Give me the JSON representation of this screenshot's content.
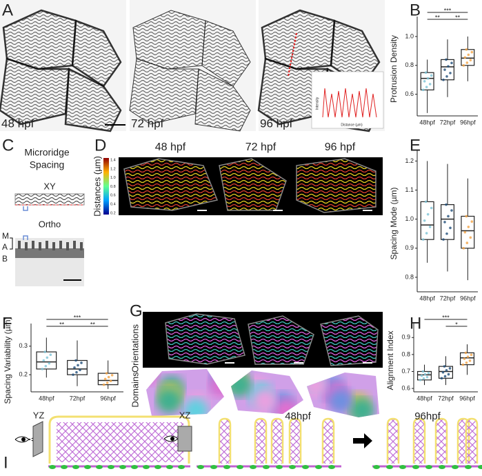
{
  "panels": {
    "A": {
      "letter": "A",
      "timepoints": [
        "48 hpf",
        "72 hpf",
        "96 hpf"
      ],
      "inset_x_label": "Distance (µm)",
      "inset_y_label": "Intensity"
    },
    "C": {
      "letter": "C",
      "title": [
        "Microridge",
        "Spacing"
      ],
      "views": [
        "XY",
        "Ortho"
      ],
      "layers": [
        "M",
        "A",
        "B"
      ]
    },
    "D": {
      "letter": "D",
      "timepoints": [
        "48 hpf",
        "72 hpf",
        "96 hpf"
      ],
      "colorbar_label": "Distances (µm)",
      "colorbar_ticks": [
        "1.4",
        "1.2",
        "1.0",
        "0.8",
        "0.6",
        "0.4",
        "0.2"
      ]
    },
    "G": {
      "letter": "G",
      "rows": [
        "Orientations",
        "Domains"
      ]
    },
    "I": {
      "letter": "I",
      "views": [
        "YZ",
        "XZ"
      ],
      "timepoints": [
        "48hpf",
        "96hpf"
      ]
    }
  },
  "chart_data": [
    {
      "type": "box",
      "letter": "B",
      "y_label": "Protrusion Density",
      "categories": [
        "48hpf",
        "72hpf",
        "96hpf"
      ],
      "colors": [
        "#7cc3d6",
        "#1f4e79",
        "#f2a244"
      ],
      "ylim": [
        0.45,
        1.1
      ],
      "yticks": [
        0.6,
        0.8,
        {
          "value": 1,
          "label": "1.0"
        }
      ],
      "boxes": [
        {
          "min": 0.47,
          "q1": 0.63,
          "median": 0.71,
          "q3": 0.75,
          "max": 0.84
        },
        {
          "min": 0.58,
          "q1": 0.7,
          "median": 0.79,
          "q3": 0.84,
          "max": 0.98
        },
        {
          "min": 0.69,
          "q1": 0.8,
          "median": 0.85,
          "q3": 0.91,
          "max": 1.0
        }
      ],
      "significance": [
        {
          "pair": [
            "48hpf",
            "72hpf"
          ],
          "label": "**"
        },
        {
          "pair": [
            "72hpf",
            "96hpf"
          ],
          "label": "**"
        },
        {
          "pair": [
            "48hpf",
            "96hpf"
          ],
          "label": "***"
        }
      ]
    },
    {
      "type": "box",
      "letter": "E",
      "y_label": "Spacing Mode (µm)",
      "categories": [
        "48hpf",
        "72hpf",
        "96hpf"
      ],
      "colors": [
        "#7cc3d6",
        "#1f4e79",
        "#f2a244"
      ],
      "ylim": [
        0.75,
        1.22
      ],
      "yticks": [
        0.8,
        0.9,
        {
          "value": 1,
          "label": "1.0"
        },
        1.1,
        1.2
      ],
      "boxes": [
        {
          "min": 0.85,
          "q1": 0.93,
          "median": 0.98,
          "q3": 1.06,
          "max": 1.2
        },
        {
          "min": 0.82,
          "q1": 0.93,
          "median": 1.0,
          "q3": 1.05,
          "max": 1.19
        },
        {
          "min": 0.79,
          "q1": 0.9,
          "median": 0.96,
          "q3": 1.01,
          "max": 1.14
        }
      ],
      "significance": []
    },
    {
      "type": "box",
      "letter": "F",
      "y_label": "Spacing Variability (µm)",
      "categories": [
        "48hpf",
        "72hpf",
        "96hpf"
      ],
      "colors": [
        "#7cc3d6",
        "#1f4e79",
        "#f2a244"
      ],
      "ylim": [
        0.14,
        0.36
      ],
      "yticks": [
        0.2,
        0.3
      ],
      "boxes": [
        {
          "min": 0.19,
          "q1": 0.22,
          "median": 0.245,
          "q3": 0.28,
          "max": 0.33
        },
        {
          "min": 0.16,
          "q1": 0.2,
          "median": 0.22,
          "q3": 0.25,
          "max": 0.32
        },
        {
          "min": 0.15,
          "q1": 0.165,
          "median": 0.18,
          "q3": 0.205,
          "max": 0.25
        }
      ],
      "significance": [
        {
          "pair": [
            "48hpf",
            "72hpf"
          ],
          "label": "**"
        },
        {
          "pair": [
            "72hpf",
            "96hpf"
          ],
          "label": "**"
        },
        {
          "pair": [
            "48hpf",
            "96hpf"
          ],
          "label": "***"
        }
      ]
    },
    {
      "type": "box",
      "letter": "H",
      "y_label": "Alignment Index",
      "categories": [
        "48hpf",
        "72hpf",
        "96hpf"
      ],
      "colors": [
        "#7cc3d6",
        "#1f4e79",
        "#f2a244"
      ],
      "ylim": [
        0.58,
        0.95
      ],
      "yticks": [
        0.6,
        0.7,
        0.8,
        0.9
      ],
      "boxes": [
        {
          "min": 0.62,
          "q1": 0.65,
          "median": 0.68,
          "q3": 0.7,
          "max": 0.74
        },
        {
          "min": 0.62,
          "q1": 0.66,
          "median": 0.7,
          "q3": 0.73,
          "max": 0.79
        },
        {
          "min": 0.68,
          "q1": 0.74,
          "median": 0.78,
          "q3": 0.81,
          "max": 0.86
        }
      ],
      "significance": [
        {
          "pair": [
            "72hpf",
            "96hpf"
          ],
          "label": "*"
        },
        {
          "pair": [
            "48hpf",
            "96hpf"
          ],
          "label": "***"
        }
      ]
    }
  ]
}
